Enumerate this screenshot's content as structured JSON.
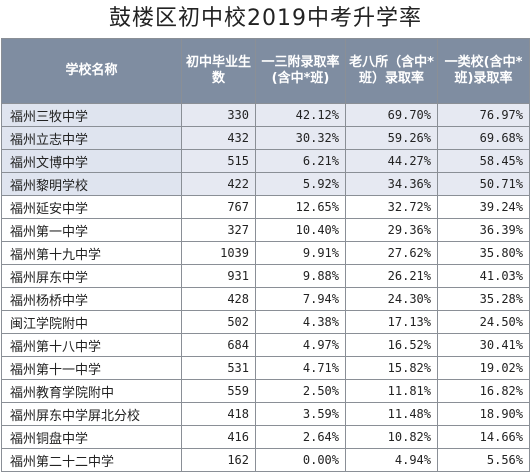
{
  "title": "鼓楼区初中校2019中考升学率",
  "headers": [
    "学校名称",
    "初中毕业生数",
    "一三附录取率(含中*班)",
    "老八所（含中*班）录取率",
    "一类校(含中*班)录取率"
  ],
  "rows": [
    {
      "name": "福州三牧中学",
      "grads": "330",
      "r1": "42.12%",
      "r2": "69.70%",
      "r3": "76.97%",
      "highlight": true
    },
    {
      "name": "福州立志中学",
      "grads": "432",
      "r1": "30.32%",
      "r2": "59.26%",
      "r3": "69.68%",
      "highlight": true
    },
    {
      "name": "福州文博中学",
      "grads": "515",
      "r1": "6.21%",
      "r2": "44.27%",
      "r3": "58.45%",
      "highlight": true
    },
    {
      "name": "福州黎明学校",
      "grads": "422",
      "r1": "5.92%",
      "r2": "34.36%",
      "r3": "50.71%",
      "highlight": true
    },
    {
      "name": "福州延安中学",
      "grads": "767",
      "r1": "12.65%",
      "r2": "32.72%",
      "r3": "39.24%",
      "highlight": false
    },
    {
      "name": "福州第一中学",
      "grads": "327",
      "r1": "10.40%",
      "r2": "29.36%",
      "r3": "36.39%",
      "highlight": false
    },
    {
      "name": "福州第十九中学",
      "grads": "1039",
      "r1": "9.91%",
      "r2": "27.62%",
      "r3": "35.80%",
      "highlight": false
    },
    {
      "name": "福州屏东中学",
      "grads": "931",
      "r1": "9.88%",
      "r2": "26.21%",
      "r3": "41.03%",
      "highlight": false
    },
    {
      "name": "福州杨桥中学",
      "grads": "428",
      "r1": "7.94%",
      "r2": "24.30%",
      "r3": "35.28%",
      "highlight": false
    },
    {
      "name": "闽江学院附中",
      "grads": "502",
      "r1": "4.38%",
      "r2": "17.13%",
      "r3": "24.50%",
      "highlight": false
    },
    {
      "name": "福州第十八中学",
      "grads": "684",
      "r1": "4.97%",
      "r2": "16.52%",
      "r3": "30.41%",
      "highlight": false
    },
    {
      "name": "福州第十一中学",
      "grads": "531",
      "r1": "4.71%",
      "r2": "15.82%",
      "r3": "19.02%",
      "highlight": false
    },
    {
      "name": "福州教育学院附中",
      "grads": "559",
      "r1": "2.50%",
      "r2": "11.81%",
      "r3": "16.82%",
      "highlight": false
    },
    {
      "name": "福州屏东中学屏北分校",
      "grads": "418",
      "r1": "3.59%",
      "r2": "11.48%",
      "r3": "18.90%",
      "highlight": false
    },
    {
      "name": "福州铜盘中学",
      "grads": "416",
      "r1": "2.64%",
      "r2": "10.82%",
      "r3": "14.66%",
      "highlight": false
    },
    {
      "name": "福州第二十二中学",
      "grads": "162",
      "r1": "0.00%",
      "r2": "4.94%",
      "r3": "5.56%",
      "highlight": false
    }
  ]
}
